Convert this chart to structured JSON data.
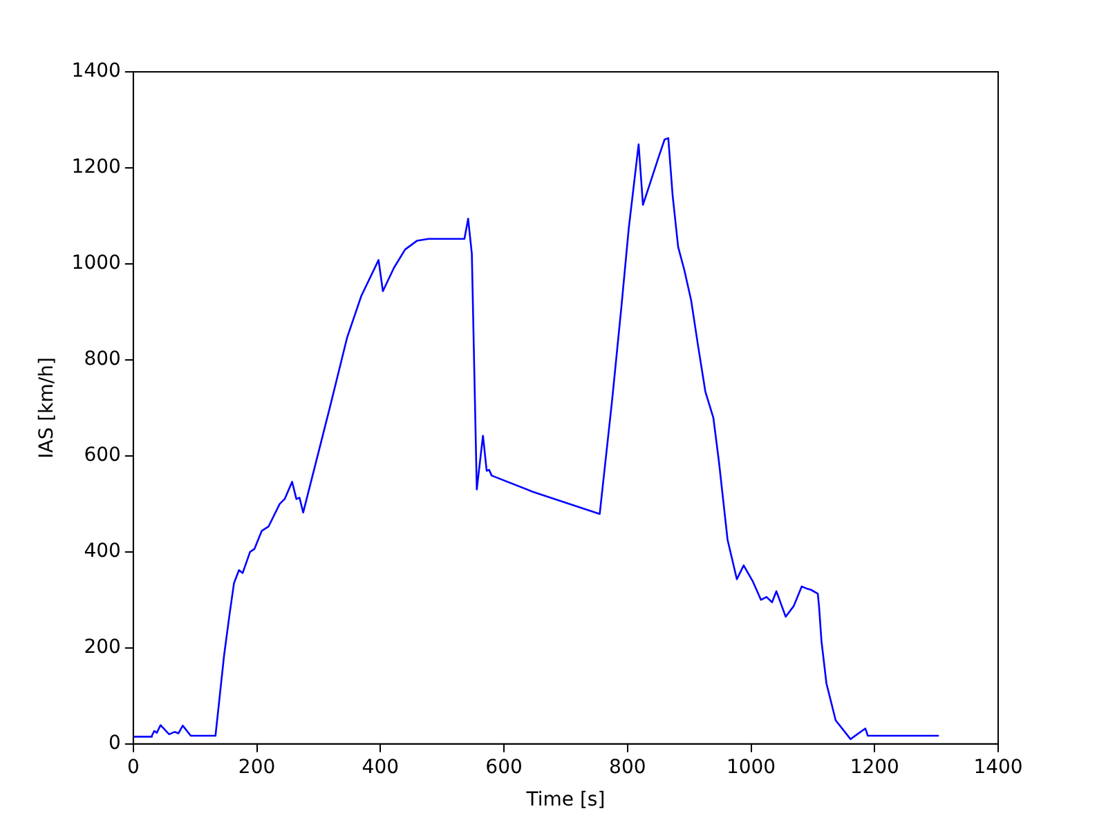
{
  "chart_data": {
    "type": "line",
    "xlabel": "Time [s]",
    "ylabel": "IAS [km/h]",
    "xlim": [
      0,
      1400
    ],
    "xticks": [
      0,
      200,
      400,
      600,
      800,
      1000,
      1200,
      1400
    ],
    "ylim": [
      0,
      1400
    ],
    "yticks": [
      0,
      200,
      400,
      600,
      800,
      1000,
      1200,
      1400
    ],
    "grid": false,
    "legend": false,
    "marker": "none",
    "line_style": "solid",
    "series": [
      {
        "color": "#0000ff",
        "x": [
          0,
          29,
          30,
          34,
          38,
          44,
          58,
          67,
          73,
          80,
          93,
          133,
          147,
          156,
          163,
          171,
          177,
          189,
          196,
          208,
          219,
          237,
          245,
          257,
          264,
          269,
          275,
          318,
          346,
          369,
          397,
          404,
          422,
          440,
          459,
          478,
          536,
          542,
          548,
          556,
          566,
          572,
          576,
          580,
          647,
          755,
          775,
          790,
          802,
          818,
          825,
          835,
          851,
          860,
          866,
          873,
          882,
          892,
          903,
          914,
          926,
          939,
          948,
          962,
          977,
          988,
          1003,
          1016,
          1025,
          1034,
          1041,
          1056,
          1069,
          1082,
          1091,
          1097,
          1108,
          1110,
          1114,
          1122,
          1137,
          1161,
          1185,
          1189,
          1304
        ],
        "values": [
          15,
          15,
          17,
          27,
          23,
          39,
          20,
          25,
          22,
          38,
          17,
          17,
          185,
          272,
          335,
          362,
          356,
          400,
          406,
          444,
          453,
          500,
          510,
          546,
          510,
          513,
          482,
          700,
          846,
          933,
          1008,
          943,
          992,
          1030,
          1048,
          1052,
          1052,
          1094,
          1021,
          530,
          642,
          569,
          571,
          559,
          525,
          479,
          715,
          909,
          1074,
          1249,
          1123,
          1162,
          1225,
          1259,
          1262,
          1143,
          1035,
          987,
          924,
          831,
          734,
          679,
          588,
          425,
          343,
          372,
          338,
          300,
          306,
          295,
          318,
          265,
          287,
          328,
          323,
          321,
          313,
          287,
          214,
          126,
          49,
          10,
          32,
          17,
          17
        ]
      }
    ]
  }
}
